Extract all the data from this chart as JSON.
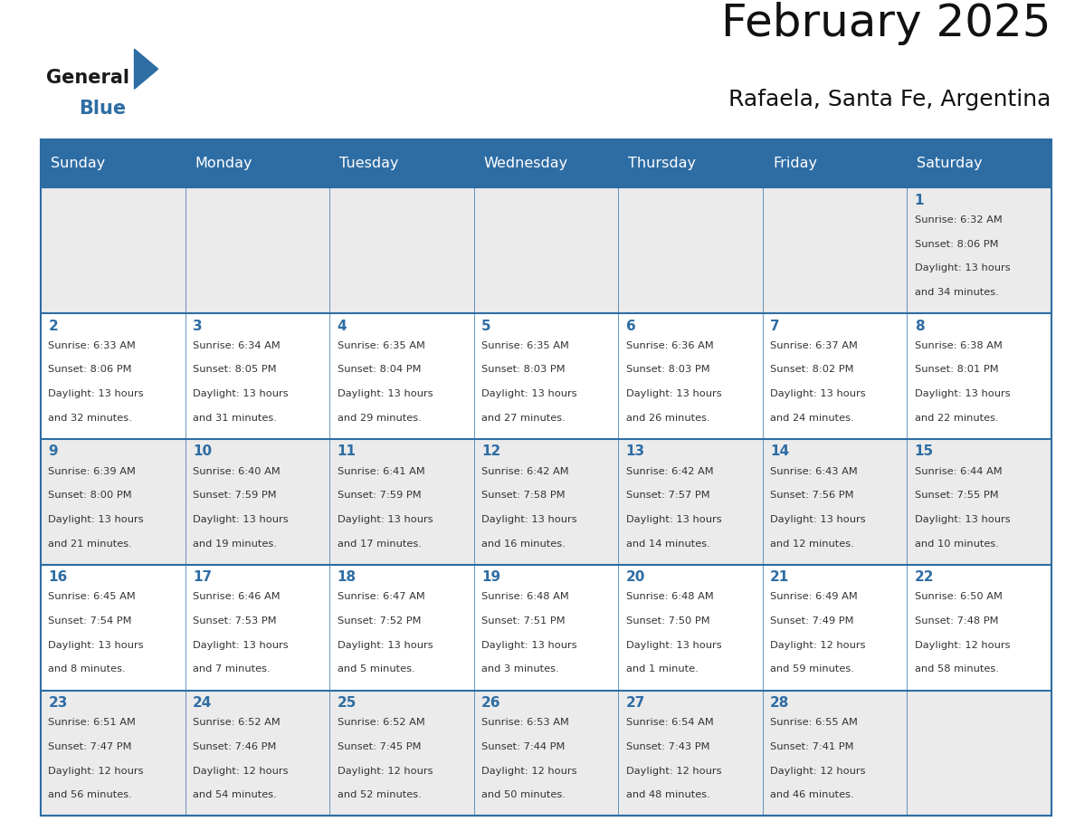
{
  "title": "February 2025",
  "subtitle": "Rafaela, Santa Fe, Argentina",
  "header_bg": "#2E6DA4",
  "header_text_color": "#FFFFFF",
  "cell_bg_odd": "#EBEBEB",
  "cell_bg_even": "#FFFFFF",
  "day_names": [
    "Sunday",
    "Monday",
    "Tuesday",
    "Wednesday",
    "Thursday",
    "Friday",
    "Saturday"
  ],
  "logo_general_color": "#1a1a1a",
  "logo_blue_color": "#2E6DA4",
  "grid_line_color": "#2E6DA4",
  "day_number_color": "#2E6DA4",
  "cell_text_color": "#333333",
  "calendar": [
    [
      null,
      null,
      null,
      null,
      null,
      null,
      {
        "day": 1,
        "sunrise": "6:32 AM",
        "sunset": "8:06 PM",
        "dl1": "Daylight: 13 hours",
        "dl2": "and 34 minutes."
      }
    ],
    [
      {
        "day": 2,
        "sunrise": "6:33 AM",
        "sunset": "8:06 PM",
        "dl1": "Daylight: 13 hours",
        "dl2": "and 32 minutes."
      },
      {
        "day": 3,
        "sunrise": "6:34 AM",
        "sunset": "8:05 PM",
        "dl1": "Daylight: 13 hours",
        "dl2": "and 31 minutes."
      },
      {
        "day": 4,
        "sunrise": "6:35 AM",
        "sunset": "8:04 PM",
        "dl1": "Daylight: 13 hours",
        "dl2": "and 29 minutes."
      },
      {
        "day": 5,
        "sunrise": "6:35 AM",
        "sunset": "8:03 PM",
        "dl1": "Daylight: 13 hours",
        "dl2": "and 27 minutes."
      },
      {
        "day": 6,
        "sunrise": "6:36 AM",
        "sunset": "8:03 PM",
        "dl1": "Daylight: 13 hours",
        "dl2": "and 26 minutes."
      },
      {
        "day": 7,
        "sunrise": "6:37 AM",
        "sunset": "8:02 PM",
        "dl1": "Daylight: 13 hours",
        "dl2": "and 24 minutes."
      },
      {
        "day": 8,
        "sunrise": "6:38 AM",
        "sunset": "8:01 PM",
        "dl1": "Daylight: 13 hours",
        "dl2": "and 22 minutes."
      }
    ],
    [
      {
        "day": 9,
        "sunrise": "6:39 AM",
        "sunset": "8:00 PM",
        "dl1": "Daylight: 13 hours",
        "dl2": "and 21 minutes."
      },
      {
        "day": 10,
        "sunrise": "6:40 AM",
        "sunset": "7:59 PM",
        "dl1": "Daylight: 13 hours",
        "dl2": "and 19 minutes."
      },
      {
        "day": 11,
        "sunrise": "6:41 AM",
        "sunset": "7:59 PM",
        "dl1": "Daylight: 13 hours",
        "dl2": "and 17 minutes."
      },
      {
        "day": 12,
        "sunrise": "6:42 AM",
        "sunset": "7:58 PM",
        "dl1": "Daylight: 13 hours",
        "dl2": "and 16 minutes."
      },
      {
        "day": 13,
        "sunrise": "6:42 AM",
        "sunset": "7:57 PM",
        "dl1": "Daylight: 13 hours",
        "dl2": "and 14 minutes."
      },
      {
        "day": 14,
        "sunrise": "6:43 AM",
        "sunset": "7:56 PM",
        "dl1": "Daylight: 13 hours",
        "dl2": "and 12 minutes."
      },
      {
        "day": 15,
        "sunrise": "6:44 AM",
        "sunset": "7:55 PM",
        "dl1": "Daylight: 13 hours",
        "dl2": "and 10 minutes."
      }
    ],
    [
      {
        "day": 16,
        "sunrise": "6:45 AM",
        "sunset": "7:54 PM",
        "dl1": "Daylight: 13 hours",
        "dl2": "and 8 minutes."
      },
      {
        "day": 17,
        "sunrise": "6:46 AM",
        "sunset": "7:53 PM",
        "dl1": "Daylight: 13 hours",
        "dl2": "and 7 minutes."
      },
      {
        "day": 18,
        "sunrise": "6:47 AM",
        "sunset": "7:52 PM",
        "dl1": "Daylight: 13 hours",
        "dl2": "and 5 minutes."
      },
      {
        "day": 19,
        "sunrise": "6:48 AM",
        "sunset": "7:51 PM",
        "dl1": "Daylight: 13 hours",
        "dl2": "and 3 minutes."
      },
      {
        "day": 20,
        "sunrise": "6:48 AM",
        "sunset": "7:50 PM",
        "dl1": "Daylight: 13 hours",
        "dl2": "and 1 minute."
      },
      {
        "day": 21,
        "sunrise": "6:49 AM",
        "sunset": "7:49 PM",
        "dl1": "Daylight: 12 hours",
        "dl2": "and 59 minutes."
      },
      {
        "day": 22,
        "sunrise": "6:50 AM",
        "sunset": "7:48 PM",
        "dl1": "Daylight: 12 hours",
        "dl2": "and 58 minutes."
      }
    ],
    [
      {
        "day": 23,
        "sunrise": "6:51 AM",
        "sunset": "7:47 PM",
        "dl1": "Daylight: 12 hours",
        "dl2": "and 56 minutes."
      },
      {
        "day": 24,
        "sunrise": "6:52 AM",
        "sunset": "7:46 PM",
        "dl1": "Daylight: 12 hours",
        "dl2": "and 54 minutes."
      },
      {
        "day": 25,
        "sunrise": "6:52 AM",
        "sunset": "7:45 PM",
        "dl1": "Daylight: 12 hours",
        "dl2": "and 52 minutes."
      },
      {
        "day": 26,
        "sunrise": "6:53 AM",
        "sunset": "7:44 PM",
        "dl1": "Daylight: 12 hours",
        "dl2": "and 50 minutes."
      },
      {
        "day": 27,
        "sunrise": "6:54 AM",
        "sunset": "7:43 PM",
        "dl1": "Daylight: 12 hours",
        "dl2": "and 48 minutes."
      },
      {
        "day": 28,
        "sunrise": "6:55 AM",
        "sunset": "7:41 PM",
        "dl1": "Daylight: 12 hours",
        "dl2": "and 46 minutes."
      },
      null
    ]
  ]
}
